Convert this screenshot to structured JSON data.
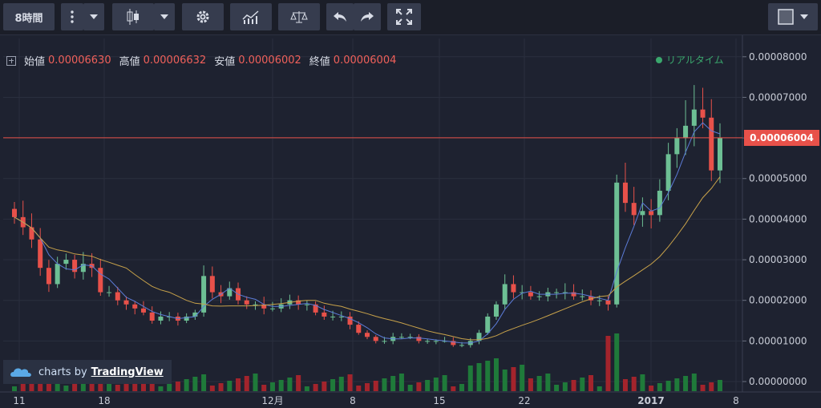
{
  "toolbar": {
    "interval": "8時間",
    "icons": [
      "more-vertical-icon",
      "chevron-down-icon",
      "candlestick-icon",
      "chevron-down-icon",
      "gear-icon",
      "indicators-icon",
      "compare-scale-icon",
      "undo-icon",
      "redo-icon",
      "fullscreen-icon",
      "color-swatch-icon",
      "chevron-down-icon"
    ]
  },
  "legend": {
    "open_label": "始値",
    "open_value": "0.00006630",
    "high_label": "高値",
    "high_value": "0.00006632",
    "low_label": "安値",
    "low_value": "0.00006002",
    "close_label": "終値",
    "close_value": "0.00006004"
  },
  "realtime_label": "リアルタイム",
  "price_tag": "0.00006004",
  "brand": {
    "prefix": "charts by",
    "name": "TradingView"
  },
  "colors": {
    "background": "#1e2230",
    "up": "#6dbf94",
    "down": "#e8514a",
    "ma_short": "#5b7bd6",
    "ma_long": "#c8a24a",
    "price_line": "#e8514a",
    "volume_up": "#1f7a3a",
    "volume_down": "#a3242c"
  },
  "chart_data": {
    "type": "candlestick",
    "x_tick_labels": [
      "11",
      "18",
      "12月",
      "8",
      "15",
      "22",
      "2017",
      "8"
    ],
    "y_tick_labels": [
      "0.00008000",
      "0.00007000",
      "0.00006000",
      "0.00005000",
      "0.00004000",
      "0.00003000",
      "0.00002000",
      "0.00001000",
      "0.00000000"
    ],
    "ylim": [
      0,
      8.45e-05
    ],
    "last_price": 6.004e-05,
    "series_close": [
      4.05e-05,
      3.8e-05,
      3.5e-05,
      2.8e-05,
      2.4e-05,
      2.9e-05,
      3e-05,
      2.7e-05,
      2.9e-05,
      2.8e-05,
      2.2e-05,
      2.2e-05,
      2e-05,
      1.9e-05,
      1.8e-05,
      1.7e-05,
      1.5e-05,
      1.6e-05,
      1.6e-05,
      1.5e-05,
      1.6e-05,
      1.7e-05,
      2.6e-05,
      2.2e-05,
      2.1e-05,
      2.3e-05,
      2e-05,
      1.9e-05,
      1.9e-05,
      1.8e-05,
      1.8e-05,
      1.9e-05,
      2e-05,
      1.9e-05,
      1.9e-05,
      1.7e-05,
      1.6e-05,
      1.6e-05,
      1.6e-05,
      1.4e-05,
      1.2e-05,
      1.1e-05,
      1e-05,
      1e-05,
      1.1e-05,
      1.1e-05,
      1.1e-05,
      1e-05,
      1e-05,
      1e-05,
      1e-05,
      9e-06,
      9e-06,
      1e-05,
      1.2e-05,
      1.6e-05,
      1.9e-05,
      2.4e-05,
      2.2e-05,
      2.2e-05,
      2.1e-05,
      2.1e-05,
      2.2e-05,
      2.2e-05,
      2.2e-05,
      2.1e-05,
      2.1e-05,
      2e-05,
      2e-05,
      1.9e-05,
      4.9e-05,
      4.4e-05,
      4.1e-05,
      4.2e-05,
      4.1e-05,
      4.7e-05,
      5.6e-05,
      6e-05,
      6.3e-05,
      6.7e-05,
      6.5e-05,
      5.2e-05,
      6e-05
    ],
    "ma_short_note": "blue moving average",
    "ma_long_note": "orange moving average"
  }
}
